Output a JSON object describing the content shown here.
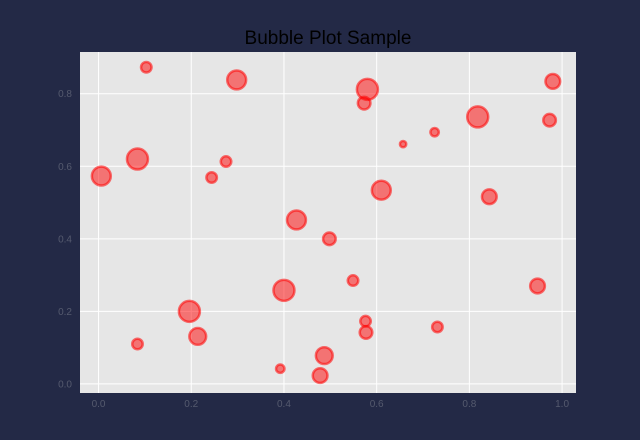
{
  "chart_data": {
    "type": "scatter",
    "title": "Bubble Plot Sample",
    "xlabel": "",
    "ylabel": "",
    "xlim": [
      -0.04,
      1.03
    ],
    "ylim": [
      -0.025,
      0.915
    ],
    "x_ticks": [
      "0.0",
      "0.2",
      "0.4",
      "0.6",
      "0.8",
      "1.0"
    ],
    "y_ticks": [
      "0.0",
      "0.2",
      "0.4",
      "0.6",
      "0.8"
    ],
    "grid": true,
    "colors": {
      "page_background": "#232946",
      "plot_background": "#e6e6e6",
      "grid": "#ffffff",
      "bubble_fill": "#ff0000",
      "bubble_edge": "#ff0000"
    },
    "points": [
      {
        "x": 0.103,
        "y": 0.873,
        "size": 5
      },
      {
        "x": 0.298,
        "y": 0.838,
        "size": 9
      },
      {
        "x": 0.58,
        "y": 0.812,
        "size": 10
      },
      {
        "x": 0.573,
        "y": 0.774,
        "size": 6
      },
      {
        "x": 0.98,
        "y": 0.834,
        "size": 7
      },
      {
        "x": 0.818,
        "y": 0.736,
        "size": 10
      },
      {
        "x": 0.973,
        "y": 0.727,
        "size": 6
      },
      {
        "x": 0.725,
        "y": 0.694,
        "size": 4
      },
      {
        "x": 0.657,
        "y": 0.661,
        "size": 3
      },
      {
        "x": 0.006,
        "y": 0.573,
        "size": 9
      },
      {
        "x": 0.084,
        "y": 0.62,
        "size": 10
      },
      {
        "x": 0.275,
        "y": 0.613,
        "size": 5
      },
      {
        "x": 0.244,
        "y": 0.569,
        "size": 5
      },
      {
        "x": 0.61,
        "y": 0.534,
        "size": 9
      },
      {
        "x": 0.843,
        "y": 0.516,
        "size": 7
      },
      {
        "x": 0.427,
        "y": 0.452,
        "size": 9
      },
      {
        "x": 0.498,
        "y": 0.4,
        "size": 6
      },
      {
        "x": 0.549,
        "y": 0.285,
        "size": 5
      },
      {
        "x": 0.4,
        "y": 0.258,
        "size": 10
      },
      {
        "x": 0.947,
        "y": 0.27,
        "size": 7
      },
      {
        "x": 0.196,
        "y": 0.2,
        "size": 10
      },
      {
        "x": 0.576,
        "y": 0.173,
        "size": 5
      },
      {
        "x": 0.731,
        "y": 0.157,
        "size": 5
      },
      {
        "x": 0.214,
        "y": 0.131,
        "size": 8
      },
      {
        "x": 0.577,
        "y": 0.142,
        "size": 6
      },
      {
        "x": 0.084,
        "y": 0.11,
        "size": 5
      },
      {
        "x": 0.487,
        "y": 0.078,
        "size": 8
      },
      {
        "x": 0.392,
        "y": 0.042,
        "size": 4
      },
      {
        "x": 0.478,
        "y": 0.023,
        "size": 7
      }
    ]
  }
}
